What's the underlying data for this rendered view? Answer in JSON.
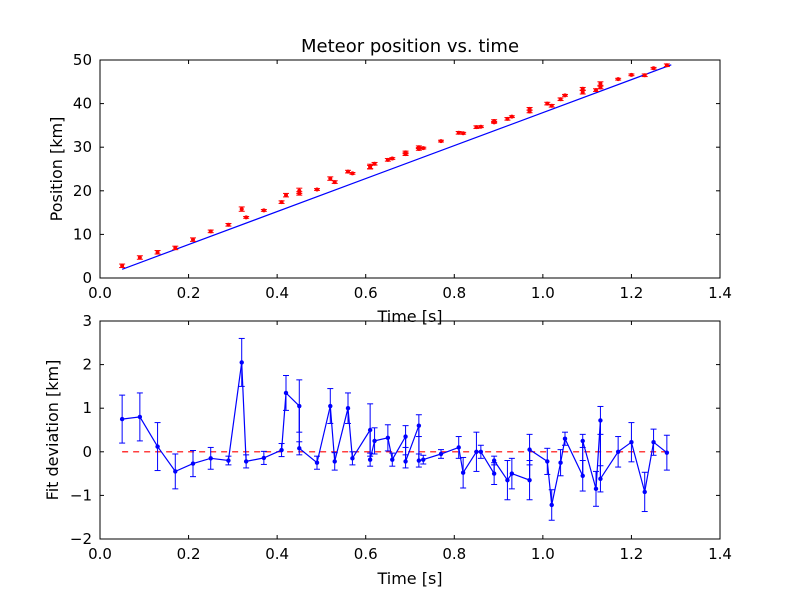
{
  "chart_data": [
    {
      "type": "scatter",
      "title": "Meteor position vs. time",
      "xlabel": "Time [s]",
      "ylabel": "Position [km]",
      "xlim": [
        0.0,
        1.4
      ],
      "ylim": [
        0,
        50
      ],
      "xticks": [
        "0.0",
        "0.2",
        "0.4",
        "0.6",
        "0.8",
        "1.0",
        "1.2",
        "1.4"
      ],
      "yticks": [
        "0",
        "10",
        "20",
        "30",
        "40",
        "50"
      ],
      "grid": false,
      "colors": {
        "points": "#ff0000",
        "fit": "#0000ff"
      },
      "fit_line": {
        "x": [
          0.05,
          1.29
        ],
        "y": [
          2.0,
          48.9
        ]
      },
      "series": [
        {
          "x": [
            0.05,
            0.09,
            0.13,
            0.17,
            0.21,
            0.25,
            0.29,
            0.32,
            0.33,
            0.37,
            0.41,
            0.42,
            0.45,
            0.45,
            0.49,
            0.52,
            0.53,
            0.56,
            0.57,
            0.61,
            0.61,
            0.62,
            0.65,
            0.66,
            0.69,
            0.69,
            0.72,
            0.72,
            0.73,
            0.77,
            0.81,
            0.82,
            0.85,
            0.86,
            0.89,
            0.89,
            0.92,
            0.93,
            0.97,
            0.97,
            1.01,
            1.02,
            1.04,
            1.05,
            1.09,
            1.09,
            1.12,
            1.13,
            1.13,
            1.17,
            1.2,
            1.23,
            1.25,
            1.28
          ],
          "y": [
            2.8,
            4.7,
            5.9,
            6.9,
            8.8,
            10.7,
            12.2,
            15.8,
            13.9,
            15.5,
            17.4,
            19.0,
            20.0,
            19.4,
            20.3,
            22.8,
            22.0,
            24.4,
            24.0,
            25.6,
            25.4,
            26.2,
            27.1,
            27.4,
            28.4,
            28.8,
            30.0,
            29.6,
            29.8,
            31.4,
            33.3,
            33.2,
            34.6,
            34.7,
            36.0,
            35.7,
            36.5,
            37.0,
            38.2,
            38.8,
            40.0,
            39.5,
            41.0,
            41.9,
            42.6,
            43.4,
            43.1,
            44.6,
            43.7,
            45.6,
            46.6,
            46.5,
            48.1,
            48.8
          ],
          "yerr": [
            0.4,
            0.4,
            0.4,
            0.4,
            0.4,
            0.3,
            0.3,
            0.5,
            0.2,
            0.2,
            0.3,
            0.4,
            0.6,
            0.4,
            0.2,
            0.4,
            0.3,
            0.3,
            0.2,
            0.5,
            0.4,
            0.3,
            0.3,
            0.2,
            0.3,
            0.3,
            0.3,
            0.3,
            0.2,
            0.2,
            0.3,
            0.2,
            0.3,
            0.2,
            0.3,
            0.2,
            0.3,
            0.2,
            0.3,
            0.3,
            0.3,
            0.3,
            0.3,
            0.2,
            0.4,
            0.3,
            0.3,
            0.4,
            0.3,
            0.2,
            0.2,
            0.3,
            0.2,
            0.3
          ]
        }
      ]
    },
    {
      "type": "line",
      "title": "",
      "xlabel": "Time [s]",
      "ylabel": "Fit deviation [km]",
      "xlim": [
        0.0,
        1.4
      ],
      "ylim": [
        -2,
        3
      ],
      "xticks": [
        "0.0",
        "0.2",
        "0.4",
        "0.6",
        "0.8",
        "1.0",
        "1.2",
        "1.4"
      ],
      "yticks": [
        "−2",
        "−1",
        "0",
        "1",
        "2",
        "3"
      ],
      "grid": false,
      "colors": {
        "line": "#0000ff",
        "zero": "#ff0000"
      },
      "reference_line": {
        "x": [
          0.05,
          1.29
        ],
        "y": [
          0,
          0
        ]
      },
      "series": [
        {
          "x": [
            0.05,
            0.09,
            0.13,
            0.17,
            0.21,
            0.25,
            0.29,
            0.32,
            0.33,
            0.37,
            0.41,
            0.42,
            0.45,
            0.45,
            0.49,
            0.52,
            0.53,
            0.56,
            0.57,
            0.61,
            0.61,
            0.62,
            0.65,
            0.66,
            0.69,
            0.69,
            0.72,
            0.72,
            0.73,
            0.77,
            0.81,
            0.82,
            0.85,
            0.86,
            0.89,
            0.89,
            0.92,
            0.93,
            0.97,
            0.97,
            1.01,
            1.02,
            1.04,
            1.05,
            1.09,
            1.09,
            1.12,
            1.13,
            1.13,
            1.17,
            1.2,
            1.23,
            1.25,
            1.28
          ],
          "y": [
            0.75,
            0.8,
            0.12,
            -0.45,
            -0.27,
            -0.15,
            -0.2,
            2.05,
            -0.22,
            -0.14,
            0.04,
            1.35,
            1.05,
            0.08,
            -0.25,
            1.05,
            -0.22,
            1.0,
            -0.15,
            0.5,
            -0.18,
            0.25,
            0.32,
            -0.18,
            0.35,
            -0.22,
            0.6,
            -0.2,
            -0.18,
            -0.05,
            0.1,
            -0.48,
            0.0,
            0.0,
            -0.5,
            -0.2,
            -0.65,
            -0.5,
            -0.65,
            0.05,
            -0.22,
            -1.22,
            -0.25,
            0.3,
            -0.55,
            0.25,
            -0.85,
            0.72,
            -0.62,
            0.0,
            0.22,
            -0.92,
            0.22,
            -0.02
          ],
          "yerr": [
            0.55,
            0.55,
            0.55,
            0.4,
            0.3,
            0.25,
            0.1,
            0.55,
            0.15,
            0.15,
            0.15,
            0.4,
            0.6,
            0.15,
            0.15,
            0.4,
            0.2,
            0.35,
            0.15,
            0.6,
            0.15,
            0.3,
            0.3,
            0.15,
            0.25,
            0.15,
            0.25,
            0.15,
            0.1,
            0.1,
            0.25,
            0.35,
            0.45,
            0.15,
            0.25,
            0.1,
            0.45,
            0.35,
            0.45,
            0.35,
            0.3,
            0.35,
            0.3,
            0.15,
            0.35,
            0.15,
            0.4,
            0.32,
            0.3,
            0.35,
            0.45,
            0.45,
            0.3,
            0.4
          ]
        }
      ]
    }
  ]
}
